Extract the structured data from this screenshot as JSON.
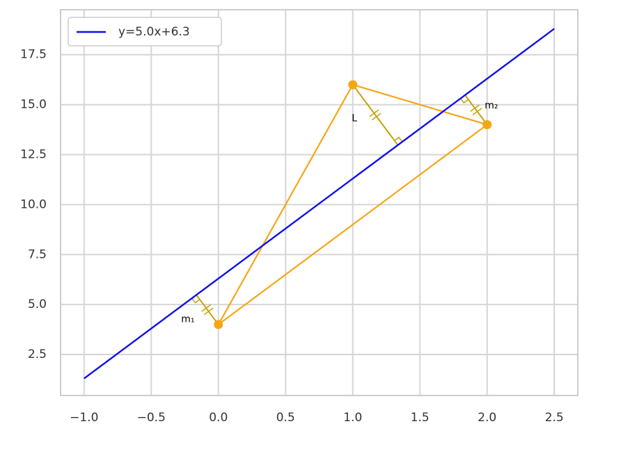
{
  "chart_data": {
    "type": "line",
    "series": [
      {
        "name": "y=5.0x+6.3",
        "color": "#1010e8",
        "x": [
          -1,
          2.5
        ],
        "values": [
          1.3,
          18.8
        ]
      }
    ],
    "points": {
      "color": "#f5a615",
      "x": [
        0,
        1,
        2
      ],
      "values": [
        4,
        16,
        14
      ]
    },
    "annotations": [
      "m₁",
      "L",
      "m₂"
    ],
    "perpendicular_color": "#c9a100",
    "xlim": [
      -1.175,
      2.675
    ],
    "ylim": [
      0.45,
      19.75
    ],
    "xticks": [
      {
        "value": -1,
        "label": "−1.0"
      },
      {
        "value": -0.5,
        "label": "−0.5"
      },
      {
        "value": 0,
        "label": "0.0"
      },
      {
        "value": 0.5,
        "label": "0.5"
      },
      {
        "value": 1,
        "label": "1.0"
      },
      {
        "value": 1.5,
        "label": "1.5"
      },
      {
        "value": 2,
        "label": "2.0"
      },
      {
        "value": 2.5,
        "label": "2.5"
      }
    ],
    "yticks": [
      {
        "value": 2.5,
        "label": "2.5"
      },
      {
        "value": 5,
        "label": "5.0"
      },
      {
        "value": 7.5,
        "label": "7.5"
      },
      {
        "value": 10,
        "label": "10.0"
      },
      {
        "value": 12.5,
        "label": "12.5"
      },
      {
        "value": 15,
        "label": "15.0"
      },
      {
        "value": 17.5,
        "label": "17.5"
      }
    ],
    "grid": true,
    "legend": "upper left"
  }
}
